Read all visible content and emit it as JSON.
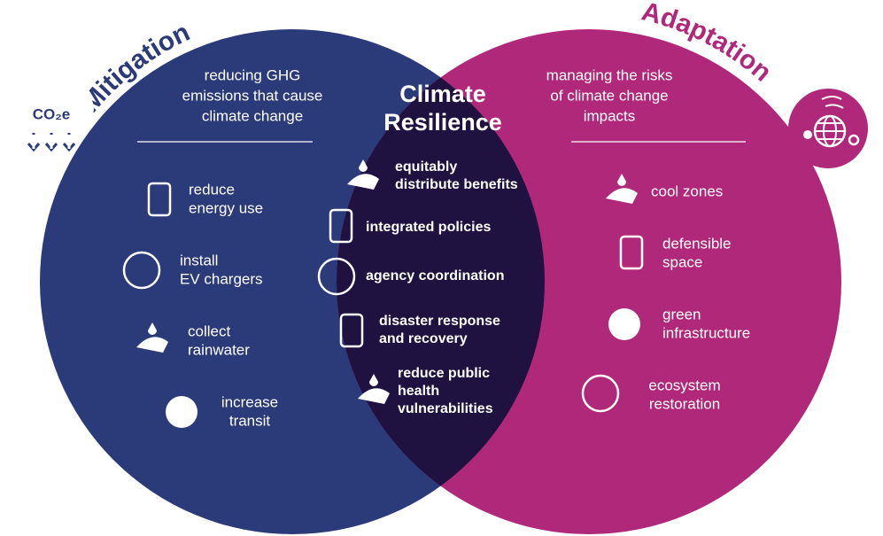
{
  "left": {
    "title": "Mitigation",
    "icon_label": "CO₂e",
    "description": [
      "reducing GHG",
      "emissions that cause",
      "climate change"
    ],
    "items": [
      {
        "lines": [
          "reduce",
          "energy use"
        ]
      },
      {
        "lines": [
          "install",
          "EV chargers"
        ]
      },
      {
        "lines": [
          "collect",
          "rainwater"
        ]
      },
      {
        "lines": [
          "increase",
          "transit"
        ]
      }
    ]
  },
  "center": {
    "title": [
      "Climate",
      "Resilience"
    ],
    "items": [
      {
        "lines": [
          "equitably",
          "distribute benefits"
        ]
      },
      {
        "lines": [
          "integrated policies"
        ]
      },
      {
        "lines": [
          "agency coordination"
        ]
      },
      {
        "lines": [
          "disaster response",
          "and recovery"
        ]
      },
      {
        "lines": [
          "reduce public",
          "health",
          "vulnerabilities"
        ]
      }
    ]
  },
  "right": {
    "title": "Adaptation",
    "description": [
      "managing the risks",
      "of climate change",
      "impacts"
    ],
    "items": [
      {
        "lines": [
          "cool zones"
        ]
      },
      {
        "lines": [
          "defensible",
          "space"
        ]
      },
      {
        "lines": [
          "green",
          "infrastructure"
        ]
      },
      {
        "lines": [
          "ecosystem",
          "restoration"
        ]
      }
    ]
  }
}
